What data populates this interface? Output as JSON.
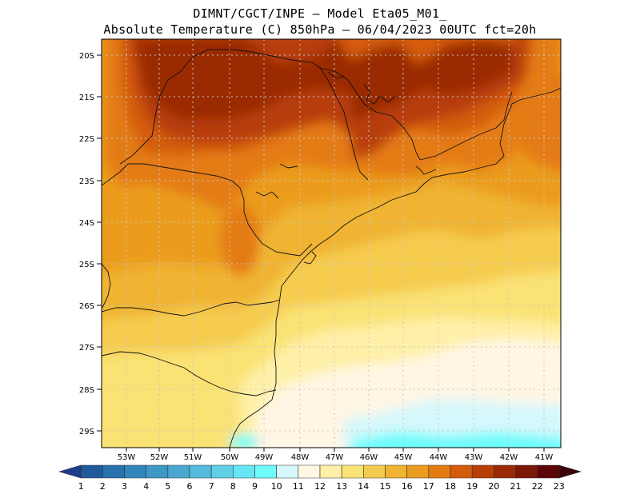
{
  "header": {
    "line1": "DIMNT/CGCT/INPE –  Model Eta05_M01_",
    "line2": "Absolute Temperature (C) 850hPa –  06/04/2023 00UTC fct=20h"
  },
  "map": {
    "lat_labels": [
      "20S",
      "21S",
      "22S",
      "23S",
      "24S",
      "25S",
      "26S",
      "27S",
      "28S",
      "29S"
    ],
    "lon_labels": [
      "53W",
      "52W",
      "51W",
      "50W",
      "49W",
      "48W",
      "47W",
      "46W",
      "45W",
      "44W",
      "43W",
      "42W",
      "41W"
    ]
  },
  "colorbar": {
    "labels": [
      "1",
      "2",
      "3",
      "4",
      "5",
      "6",
      "7",
      "8",
      "9",
      "10",
      "11",
      "12",
      "13",
      "14",
      "15",
      "16",
      "17",
      "18",
      "19",
      "20",
      "21",
      "22",
      "23"
    ],
    "colors": [
      "#1e3c8c",
      "#215a9c",
      "#2773ac",
      "#3286bc",
      "#3e98c6",
      "#4aa8d0",
      "#55bbdc",
      "#5fd0e8",
      "#66e6f4",
      "#6efcfc",
      "#d6f8fc",
      "#fff6e4",
      "#fff0a8",
      "#fae274",
      "#f6cc50",
      "#f0b432",
      "#eb9c1e",
      "#e47c12",
      "#d45c0a",
      "#b83e08",
      "#9a2a06",
      "#7c1606",
      "#5c0408",
      "#3c0008"
    ]
  },
  "colors": {
    "frame": "#000000",
    "grid": "#bbbbbb",
    "coast": "#111111"
  }
}
